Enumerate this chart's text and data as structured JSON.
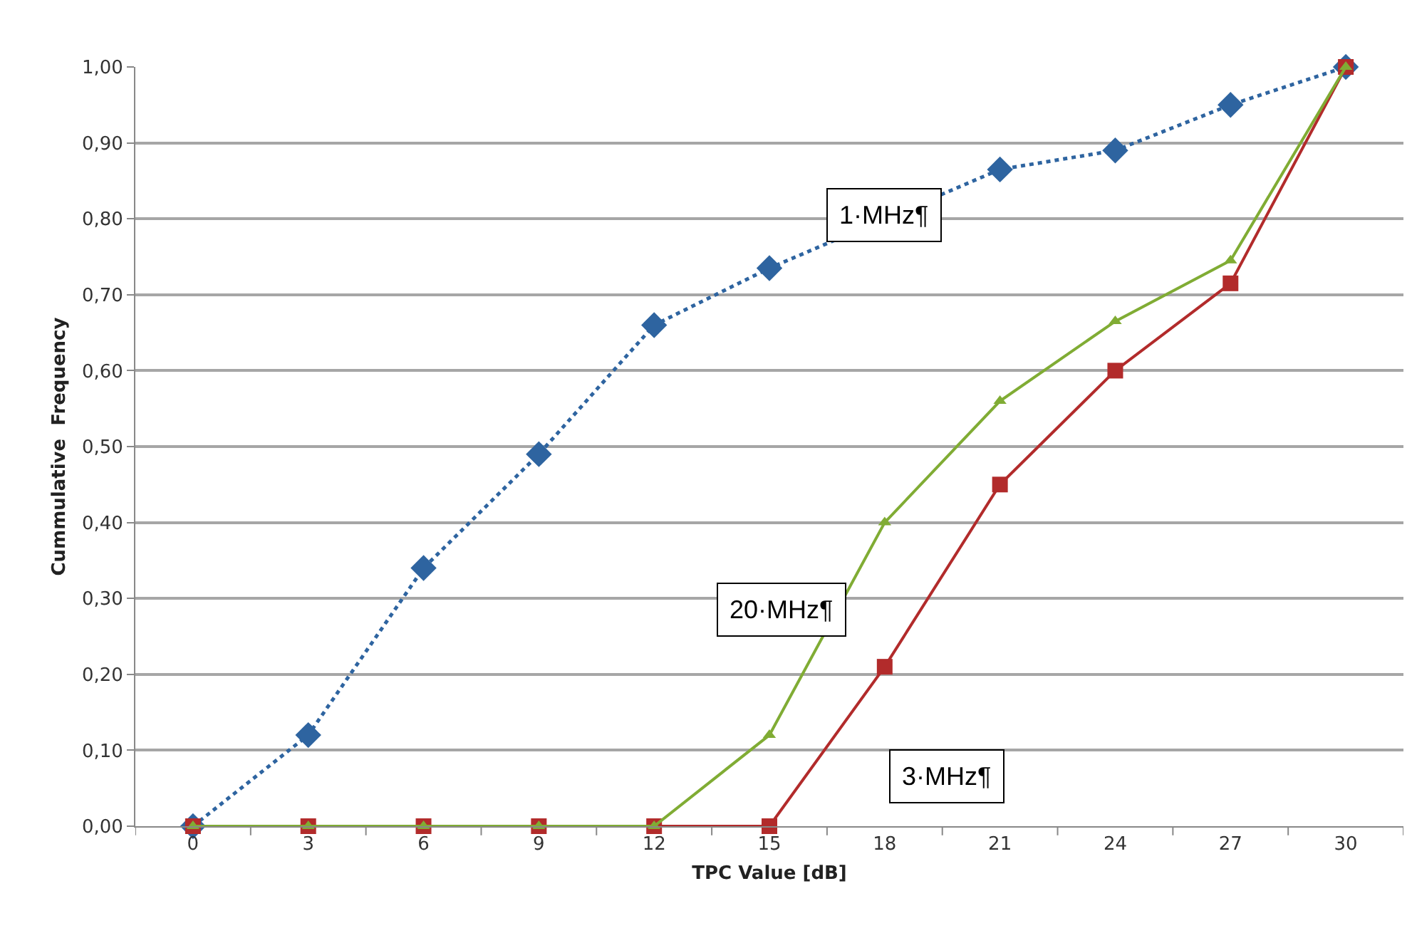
{
  "chart_data": {
    "type": "line",
    "xlabel": "TPC Value [dB]",
    "ylabel": "Cummulative  Frequency",
    "categories": [
      "0",
      "3",
      "6",
      "9",
      "12",
      "15",
      "18",
      "21",
      "24",
      "27",
      "30"
    ],
    "series": [
      {
        "name": "1·MHz¶",
        "color": "#2e64a0",
        "marker": "diamond",
        "line_style": "dotted",
        "values": [
          0,
          0.12,
          0.34,
          0.49,
          0.66,
          0.735,
          null,
          0.865,
          0.89,
          0.95,
          1.0
        ]
      },
      {
        "name": "3·MHz¶",
        "color": "#b22b2b",
        "marker": "square",
        "line_style": "solid",
        "values": [
          0,
          0,
          0,
          0,
          0,
          0,
          0.21,
          0.45,
          0.6,
          0.715,
          1.0
        ]
      },
      {
        "name": "20·MHz¶",
        "color": "#80ac34",
        "marker": "triangle",
        "line_style": "solid",
        "values": [
          0,
          0,
          0,
          0,
          0,
          0.12,
          0.4,
          0.56,
          0.665,
          0.745,
          1.0
        ]
      }
    ],
    "ylim": [
      0,
      1
    ],
    "yticks": [
      {
        "value": 0,
        "label": "0,00"
      },
      {
        "value": 0.1,
        "label": "0,10"
      },
      {
        "value": 0.2,
        "label": "0,20"
      },
      {
        "value": 0.3,
        "label": "0,30"
      },
      {
        "value": 0.4,
        "label": "0,40"
      },
      {
        "value": 0.5,
        "label": "0,50"
      },
      {
        "value": 0.6,
        "label": "0,60"
      },
      {
        "value": 0.7,
        "label": "0,70"
      },
      {
        "value": 0.8,
        "label": "0,80"
      },
      {
        "value": 0.9,
        "label": "0,90"
      },
      {
        "value": 1.0,
        "label": "1,00"
      }
    ],
    "grid": "y",
    "legend": false
  }
}
